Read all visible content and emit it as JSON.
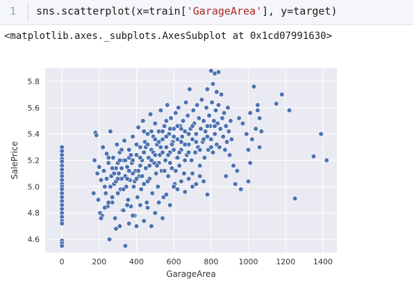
{
  "cell": {
    "line_number": "1",
    "code_prefix": "sns.scatterplot(x=train[",
    "code_string": "'GarageArea'",
    "code_suffix": "], y=target)"
  },
  "output_text": "<matplotlib.axes._subplots.AxesSubplot at 0x1cd07991630>",
  "chart_data": {
    "type": "scatter",
    "title": "",
    "xlabel": "GarageArea",
    "ylabel": "SalePrice",
    "xlim": [
      -90,
      1475
    ],
    "ylim": [
      4.5,
      5.9
    ],
    "xticks": [
      0,
      200,
      400,
      600,
      800,
      1000,
      1200,
      1400
    ],
    "yticks": [
      4.6,
      4.8,
      5.0,
      5.2,
      5.4,
      5.6,
      5.8
    ],
    "grid": true,
    "marker_color": "#4c72b0",
    "background_color": "#eaeaf2",
    "points": [
      [
        0,
        5.3
      ],
      [
        0,
        5.27
      ],
      [
        0,
        5.24
      ],
      [
        0,
        5.21
      ],
      [
        0,
        5.19
      ],
      [
        0,
        5.16
      ],
      [
        0,
        5.13
      ],
      [
        0,
        5.1
      ],
      [
        0,
        5.08
      ],
      [
        0,
        5.05
      ],
      [
        0,
        5.02
      ],
      [
        0,
        5.0
      ],
      [
        0,
        4.98
      ],
      [
        0,
        4.95
      ],
      [
        0,
        4.92
      ],
      [
        0,
        4.89
      ],
      [
        0,
        4.86
      ],
      [
        0,
        4.83
      ],
      [
        0,
        4.8
      ],
      [
        0,
        4.77
      ],
      [
        0,
        4.74
      ],
      [
        0,
        4.72
      ],
      [
        0,
        4.59
      ],
      [
        0,
        4.57
      ],
      [
        0,
        4.55
      ],
      [
        180,
        5.41
      ],
      [
        185,
        5.39
      ],
      [
        175,
        5.2
      ],
      [
        190,
        5.1
      ],
      [
        170,
        4.95
      ],
      [
        195,
        4.9
      ],
      [
        200,
        5.15
      ],
      [
        205,
        4.8
      ],
      [
        210,
        5.05
      ],
      [
        215,
        4.78
      ],
      [
        220,
        5.3
      ],
      [
        225,
        5.12
      ],
      [
        230,
        5.0
      ],
      [
        235,
        4.95
      ],
      [
        240,
        5.25
      ],
      [
        245,
        4.85
      ],
      [
        250,
        5.18
      ],
      [
        255,
        4.6
      ],
      [
        260,
        5.42
      ],
      [
        265,
        5.08
      ],
      [
        270,
        4.88
      ],
      [
        275,
        5.22
      ],
      [
        280,
        5.02
      ],
      [
        285,
        4.76
      ],
      [
        290,
        5.14
      ],
      [
        295,
        5.32
      ],
      [
        300,
        4.95
      ],
      [
        305,
        5.1
      ],
      [
        310,
        5.26
      ],
      [
        315,
        4.98
      ],
      [
        320,
        5.06
      ],
      [
        325,
        4.82
      ],
      [
        330,
        5.2
      ],
      [
        335,
        5.35
      ],
      [
        340,
        4.55
      ],
      [
        345,
        5.0
      ],
      [
        350,
        5.15
      ],
      [
        355,
        4.9
      ],
      [
        360,
        5.28
      ],
      [
        365,
        5.05
      ],
      [
        370,
        4.85
      ],
      [
        375,
        5.18
      ],
      [
        380,
        5.38
      ],
      [
        385,
        5.0
      ],
      [
        390,
        4.78
      ],
      [
        395,
        5.12
      ],
      [
        400,
        5.24
      ],
      [
        405,
        4.92
      ],
      [
        410,
        5.45
      ],
      [
        415,
        5.08
      ],
      [
        420,
        5.3
      ],
      [
        425,
        4.98
      ],
      [
        430,
        5.2
      ],
      [
        435,
        5.5
      ],
      [
        440,
        5.02
      ],
      [
        445,
        5.34
      ],
      [
        450,
        5.14
      ],
      [
        455,
        4.88
      ],
      [
        460,
        5.4
      ],
      [
        465,
        5.22
      ],
      [
        470,
        5.06
      ],
      [
        475,
        5.55
      ],
      [
        480,
        5.28
      ],
      [
        485,
        4.95
      ],
      [
        490,
        5.38
      ],
      [
        495,
        5.18
      ],
      [
        500,
        5.48
      ],
      [
        505,
        5.1
      ],
      [
        510,
        5.32
      ],
      [
        515,
        5.0
      ],
      [
        520,
        5.42
      ],
      [
        525,
        5.24
      ],
      [
        530,
        5.58
      ],
      [
        535,
        5.12
      ],
      [
        540,
        5.36
      ],
      [
        545,
        4.92
      ],
      [
        550,
        5.46
      ],
      [
        555,
        5.2
      ],
      [
        560,
        5.3
      ],
      [
        565,
        5.62
      ],
      [
        570,
        5.08
      ],
      [
        575,
        5.4
      ],
      [
        580,
        5.26
      ],
      [
        585,
        5.52
      ],
      [
        590,
        5.14
      ],
      [
        595,
        5.34
      ],
      [
        600,
        5.44
      ],
      [
        605,
        5.02
      ],
      [
        610,
        5.56
      ],
      [
        615,
        5.22
      ],
      [
        620,
        5.36
      ],
      [
        625,
        5.6
      ],
      [
        630,
        5.16
      ],
      [
        635,
        5.46
      ],
      [
        640,
        5.28
      ],
      [
        645,
        5.38
      ],
      [
        650,
        5.5
      ],
      [
        655,
        5.1
      ],
      [
        660,
        5.42
      ],
      [
        665,
        5.64
      ],
      [
        670,
        5.24
      ],
      [
        675,
        5.54
      ],
      [
        680,
        5.32
      ],
      [
        685,
        5.74
      ],
      [
        690,
        5.44
      ],
      [
        695,
        5.2
      ],
      [
        700,
        5.36
      ],
      [
        705,
        5.58
      ],
      [
        710,
        5.48
      ],
      [
        715,
        5.26
      ],
      [
        720,
        5.4
      ],
      [
        725,
        5.62
      ],
      [
        730,
        5.3
      ],
      [
        735,
        5.52
      ],
      [
        740,
        5.16
      ],
      [
        745,
        5.44
      ],
      [
        750,
        5.66
      ],
      [
        755,
        5.34
      ],
      [
        760,
        5.5
      ],
      [
        765,
        5.22
      ],
      [
        770,
        5.42
      ],
      [
        775,
        5.6
      ],
      [
        780,
        5.38
      ],
      [
        785,
        5.28
      ],
      [
        790,
        5.54
      ],
      [
        795,
        5.46
      ],
      [
        800,
        5.36
      ],
      [
        805,
        5.64
      ],
      [
        810,
        5.26
      ],
      [
        815,
        5.5
      ],
      [
        820,
        5.4
      ],
      [
        825,
        5.58
      ],
      [
        830,
        5.32
      ],
      [
        835,
        5.48
      ],
      [
        840,
        5.62
      ],
      [
        845,
        5.3
      ],
      [
        850,
        5.44
      ],
      [
        855,
        5.7
      ],
      [
        860,
        5.52
      ],
      [
        865,
        5.38
      ],
      [
        870,
        5.56
      ],
      [
        875,
        5.28
      ],
      [
        880,
        5.46
      ],
      [
        885,
        5.34
      ],
      [
        890,
        5.6
      ],
      [
        895,
        5.42
      ],
      [
        900,
        5.24
      ],
      [
        905,
        5.5
      ],
      [
        910,
        5.36
      ],
      [
        780,
        5.74
      ],
      [
        800,
        5.88
      ],
      [
        820,
        5.86
      ],
      [
        840,
        5.87
      ],
      [
        810,
        5.78
      ],
      [
        830,
        5.72
      ],
      [
        780,
        4.94
      ],
      [
        960,
        4.98
      ],
      [
        880,
        5.08
      ],
      [
        940,
        5.12
      ],
      [
        920,
        5.16
      ],
      [
        930,
        5.02
      ],
      [
        950,
        5.52
      ],
      [
        970,
        5.48
      ],
      [
        990,
        5.4
      ],
      [
        1000,
        5.28
      ],
      [
        1010,
        5.56
      ],
      [
        1020,
        5.36
      ],
      [
        1030,
        5.76
      ],
      [
        1040,
        5.44
      ],
      [
        1050,
        5.62
      ],
      [
        1060,
        5.52
      ],
      [
        1070,
        5.42
      ],
      [
        1060,
        5.3
      ],
      [
        1010,
        5.18
      ],
      [
        1000,
        5.04
      ],
      [
        1050,
        5.58
      ],
      [
        1150,
        5.63
      ],
      [
        1180,
        5.7
      ],
      [
        1220,
        5.58
      ],
      [
        1250,
        4.91
      ],
      [
        1350,
        5.23
      ],
      [
        1390,
        5.4
      ],
      [
        1420,
        5.2
      ],
      [
        500,
        4.8
      ],
      [
        520,
        4.88
      ],
      [
        540,
        4.76
      ],
      [
        560,
        4.94
      ],
      [
        580,
        4.86
      ],
      [
        480,
        4.7
      ],
      [
        460,
        4.84
      ],
      [
        440,
        4.74
      ],
      [
        420,
        4.86
      ],
      [
        400,
        4.7
      ],
      [
        380,
        4.78
      ],
      [
        360,
        4.72
      ],
      [
        350,
        4.86
      ],
      [
        330,
        4.82
      ],
      [
        310,
        4.7
      ],
      [
        290,
        4.68
      ],
      [
        270,
        4.92
      ],
      [
        250,
        4.88
      ],
      [
        230,
        4.84
      ],
      [
        210,
        4.76
      ],
      [
        600,
        5.0
      ],
      [
        620,
        4.98
      ],
      [
        640,
        5.04
      ],
      [
        660,
        4.96
      ],
      [
        680,
        5.06
      ],
      [
        700,
        5.0
      ],
      [
        720,
        5.02
      ],
      [
        740,
        5.08
      ],
      [
        760,
        5.04
      ],
      [
        700,
        5.1
      ],
      [
        300,
        5.18
      ],
      [
        320,
        5.28
      ],
      [
        340,
        5.08
      ],
      [
        360,
        5.22
      ],
      [
        380,
        5.1
      ],
      [
        400,
        5.32
      ],
      [
        420,
        5.16
      ],
      [
        440,
        5.26
      ],
      [
        460,
        5.04
      ],
      [
        480,
        5.2
      ],
      [
        500,
        5.36
      ],
      [
        520,
        5.18
      ],
      [
        540,
        5.26
      ],
      [
        560,
        5.38
      ],
      [
        580,
        5.18
      ],
      [
        600,
        5.28
      ],
      [
        620,
        5.22
      ],
      [
        640,
        5.34
      ],
      [
        660,
        5.2
      ],
      [
        680,
        5.4
      ],
      [
        250,
        5.22
      ],
      [
        270,
        5.14
      ],
      [
        290,
        5.04
      ],
      [
        310,
        5.2
      ],
      [
        330,
        4.98
      ],
      [
        350,
        5.06
      ],
      [
        370,
        5.24
      ],
      [
        390,
        5.04
      ],
      [
        410,
        5.12
      ],
      [
        430,
        5.08
      ],
      [
        450,
        5.3
      ],
      [
        470,
        5.16
      ],
      [
        490,
        5.26
      ],
      [
        510,
        5.16
      ],
      [
        530,
        5.3
      ],
      [
        550,
        5.12
      ],
      [
        570,
        5.24
      ],
      [
        590,
        5.32
      ],
      [
        610,
        5.12
      ],
      [
        630,
        5.26
      ],
      [
        240,
        5.06
      ],
      [
        260,
        5.0
      ],
      [
        280,
        5.1
      ],
      [
        300,
        5.06
      ],
      [
        320,
        5.14
      ],
      [
        340,
        5.2
      ],
      [
        360,
        5.12
      ],
      [
        380,
        5.2
      ],
      [
        400,
        5.06
      ],
      [
        420,
        5.22
      ],
      [
        640,
        5.44
      ],
      [
        660,
        5.32
      ],
      [
        680,
        5.26
      ],
      [
        700,
        5.46
      ],
      [
        720,
        5.34
      ],
      [
        740,
        5.28
      ],
      [
        760,
        5.36
      ],
      [
        780,
        5.46
      ],
      [
        800,
        5.3
      ],
      [
        820,
        5.46
      ],
      [
        560,
        5.5
      ],
      [
        580,
        5.44
      ],
      [
        600,
        5.38
      ],
      [
        620,
        5.46
      ],
      [
        540,
        5.42
      ],
      [
        520,
        5.34
      ],
      [
        500,
        5.24
      ],
      [
        480,
        5.42
      ],
      [
        460,
        5.32
      ],
      [
        440,
        5.42
      ]
    ]
  }
}
